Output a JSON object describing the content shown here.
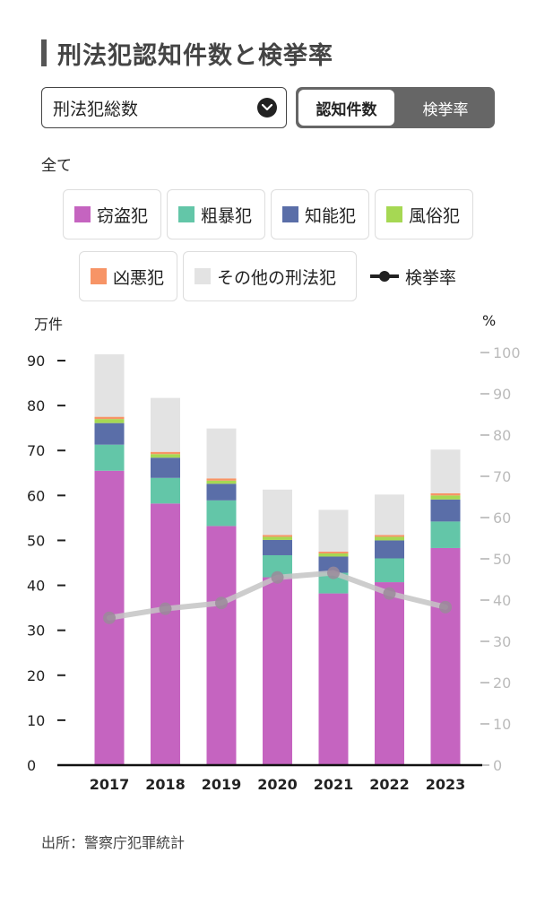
{
  "header": {
    "title": "刑法犯認知件数と検挙率"
  },
  "controls": {
    "select_value": "刑法犯総数",
    "toggle": {
      "active": "認知件数",
      "inactive": "検挙率"
    }
  },
  "subset_label": "全て",
  "legend": {
    "items": [
      {
        "label": "窃盗犯",
        "color": "#c564c0"
      },
      {
        "label": "粗暴犯",
        "color": "#63c6a8"
      },
      {
        "label": "知能犯",
        "color": "#5a6ea8"
      },
      {
        "label": "風俗犯",
        "color": "#a6d853"
      },
      {
        "label": "凶悪犯",
        "color": "#f79466"
      },
      {
        "label": "その他の刑法犯",
        "color": "#e3e3e3"
      }
    ],
    "line_label": "検挙率",
    "line_color": "#222222"
  },
  "units": {
    "left": "万件",
    "right": "%"
  },
  "source": "出所：警察庁犯罪統計",
  "chart_data": {
    "type": "bar",
    "stacked": true,
    "categories": [
      "2017",
      "2018",
      "2019",
      "2020",
      "2021",
      "2022",
      "2023"
    ],
    "series": [
      {
        "name": "窃盗犯",
        "values": [
          65.5,
          58.2,
          53.2,
          41.8,
          38.2,
          40.7,
          48.3
        ],
        "color": "#c564c0"
      },
      {
        "name": "粗暴犯",
        "values": [
          5.8,
          5.7,
          5.7,
          4.9,
          4.6,
          5.3,
          5.9
        ],
        "color": "#63c6a8"
      },
      {
        "name": "知能犯",
        "values": [
          4.8,
          4.5,
          3.7,
          3.4,
          3.6,
          4.0,
          4.9
        ],
        "color": "#5a6ea8"
      },
      {
        "name": "風俗犯",
        "values": [
          0.9,
          0.8,
          0.7,
          0.7,
          0.7,
          0.8,
          0.9
        ],
        "color": "#a6d853"
      },
      {
        "name": "凶悪犯",
        "values": [
          0.5,
          0.5,
          0.5,
          0.4,
          0.4,
          0.4,
          0.5
        ],
        "color": "#f79466"
      },
      {
        "name": "その他の刑法犯",
        "values": [
          13.9,
          12.0,
          11.1,
          10.1,
          9.3,
          9.0,
          9.7
        ],
        "color": "#e3e3e3"
      }
    ],
    "line": {
      "name": "検挙率",
      "values": [
        35.7,
        37.9,
        39.3,
        45.5,
        46.6,
        41.6,
        38.3
      ],
      "color": "#c4c4c4"
    },
    "y_left": {
      "label": "万件",
      "min": 0,
      "max": 90,
      "ticks": [
        0,
        10,
        20,
        30,
        40,
        50,
        60,
        70,
        80,
        90
      ]
    },
    "y_right": {
      "label": "%",
      "min": 0,
      "max": 100,
      "ticks": [
        0,
        10,
        20,
        30,
        40,
        50,
        60,
        70,
        80,
        90,
        100
      ]
    },
    "legend_position": "top"
  }
}
